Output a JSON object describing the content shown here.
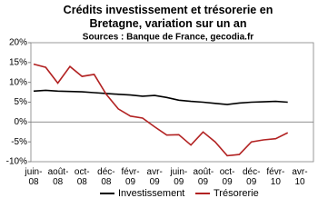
{
  "chart_data": {
    "type": "line",
    "title": "Crédits investissement et trésorerie en Bretagne, variation sur un an",
    "subtitle": "Sources : Banque de France, gecodia.fr",
    "categories": [
      "juin-08",
      null,
      "août-08",
      null,
      "oct-08",
      null,
      "déc-08",
      null,
      "févr-09",
      null,
      "avr-09",
      null,
      "juin-09",
      null,
      "août-09",
      null,
      "oct-09",
      null,
      "déc-09",
      null,
      "févr-10",
      null,
      "avr-10"
    ],
    "series": [
      {
        "name": "Investissement",
        "color": "#000000",
        "values": [
          7.8,
          8.0,
          7.8,
          7.7,
          7.6,
          7.4,
          7.2,
          7.0,
          6.8,
          6.5,
          6.7,
          6.2,
          5.5,
          5.2,
          5.0,
          4.7,
          4.4,
          4.8,
          5.0,
          5.1,
          5.2,
          5.0,
          null
        ]
      },
      {
        "name": "Trésorerie",
        "color": "#b22222",
        "values": [
          14.6,
          13.8,
          9.8,
          14.0,
          11.5,
          12.0,
          7.0,
          3.3,
          1.5,
          1.0,
          -1.2,
          -3.3,
          -3.2,
          -5.8,
          -2.5,
          -5.0,
          -8.5,
          -8.2,
          -5.0,
          -4.5,
          -4.2,
          -2.7,
          null
        ]
      }
    ],
    "ylim": [
      -10,
      20
    ],
    "yticks": [
      {
        "value": -10,
        "label": "-10%"
      },
      {
        "value": -5,
        "label": "-5%"
      },
      {
        "value": 0,
        "label": "0%"
      },
      {
        "value": 5,
        "label": "5%"
      },
      {
        "value": 10,
        "label": "10%"
      },
      {
        "value": 15,
        "label": "15%"
      },
      {
        "value": 20,
        "label": "20%"
      }
    ],
    "grid": false,
    "legend": "bottom"
  }
}
